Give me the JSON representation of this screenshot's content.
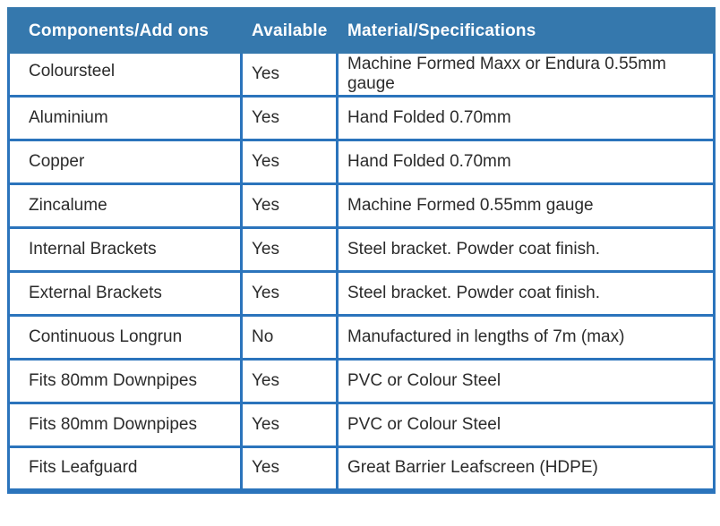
{
  "table": {
    "columns": [
      {
        "label": "Components/Add ons"
      },
      {
        "label": "Available"
      },
      {
        "label": "Material/Specifications"
      }
    ],
    "rows": [
      {
        "component": "Coloursteel",
        "available": "Yes",
        "material": "Machine Formed Maxx or Endura 0.55mm gauge"
      },
      {
        "component": "Aluminium",
        "available": "Yes",
        "material": "Hand Folded 0.70mm"
      },
      {
        "component": "Copper",
        "available": "Yes",
        "material": "Hand Folded 0.70mm"
      },
      {
        "component": "Zincalume",
        "available": "Yes",
        "material": "Machine Formed 0.55mm gauge"
      },
      {
        "component": "Internal Brackets",
        "available": "Yes",
        "material": "Steel bracket. Powder coat finish."
      },
      {
        "component": "External Brackets",
        "available": "Yes",
        "material": "Steel bracket. Powder coat finish."
      },
      {
        "component": "Continuous Longrun",
        "available": "No",
        "material": "Manufactured in lengths of 7m (max)"
      },
      {
        "component": "Fits 80mm Downpipes",
        "available": "Yes",
        "material": "PVC or Colour Steel"
      },
      {
        "component": "Fits 80mm Downpipes",
        "available": "Yes",
        "material": "PVC or Colour Steel"
      },
      {
        "component": "Fits Leafguard",
        "available": "Yes",
        "material": "Great Barrier Leafscreen (HDPE)"
      }
    ]
  },
  "colors": {
    "header_bg": "#3578ad",
    "border": "#2b74bc",
    "header_text": "#ffffff",
    "body_text": "#2b2b2b",
    "row_bg": "#ffffff"
  }
}
